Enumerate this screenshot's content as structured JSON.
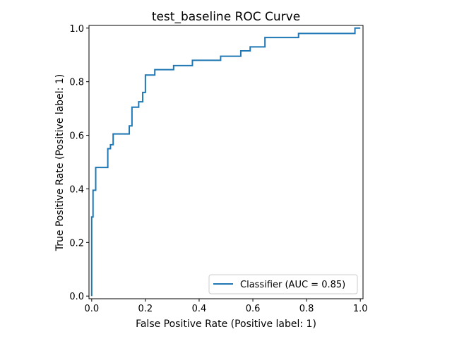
{
  "chart_data": {
    "type": "line",
    "title": "test_baseline ROC Curve",
    "xlabel": "False Positive Rate (Positive label: 1)",
    "ylabel": "True Positive Rate (Positive label: 1)",
    "xlim": [
      -0.01,
      1.01
    ],
    "ylim": [
      -0.01,
      1.01
    ],
    "xticks": [
      0.0,
      0.2,
      0.4,
      0.6,
      0.8,
      1.0
    ],
    "xtick_labels": [
      "0.0",
      "0.2",
      "0.4",
      "0.6",
      "0.8",
      "1.0"
    ],
    "yticks": [
      0.0,
      0.2,
      0.4,
      0.6,
      0.8,
      1.0
    ],
    "ytick_labels": [
      "0.0",
      "0.2",
      "0.4",
      "0.6",
      "0.8",
      "1.0"
    ],
    "grid": false,
    "legend_position": "lower-right",
    "series": [
      {
        "name": "Classifier (AUC = 0.85)",
        "color": "#1f77b4",
        "x": [
          0.0,
          0.0,
          0.005,
          0.005,
          0.015,
          0.015,
          0.025,
          0.025,
          0.06,
          0.06,
          0.07,
          0.07,
          0.08,
          0.08,
          0.14,
          0.14,
          0.15,
          0.15,
          0.175,
          0.175,
          0.19,
          0.19,
          0.2,
          0.2,
          0.235,
          0.235,
          0.305,
          0.305,
          0.375,
          0.375,
          0.48,
          0.48,
          0.555,
          0.555,
          0.59,
          0.59,
          0.645,
          0.645,
          0.77,
          0.77,
          0.98,
          0.98,
          1.0
        ],
        "y": [
          0.0,
          0.295,
          0.295,
          0.395,
          0.395,
          0.48,
          0.48,
          0.48,
          0.48,
          0.55,
          0.55,
          0.565,
          0.565,
          0.605,
          0.605,
          0.635,
          0.635,
          0.705,
          0.705,
          0.725,
          0.725,
          0.76,
          0.76,
          0.825,
          0.825,
          0.845,
          0.845,
          0.86,
          0.86,
          0.88,
          0.88,
          0.895,
          0.895,
          0.915,
          0.915,
          0.93,
          0.93,
          0.965,
          0.965,
          0.98,
          0.98,
          1.0,
          1.0
        ]
      }
    ]
  }
}
